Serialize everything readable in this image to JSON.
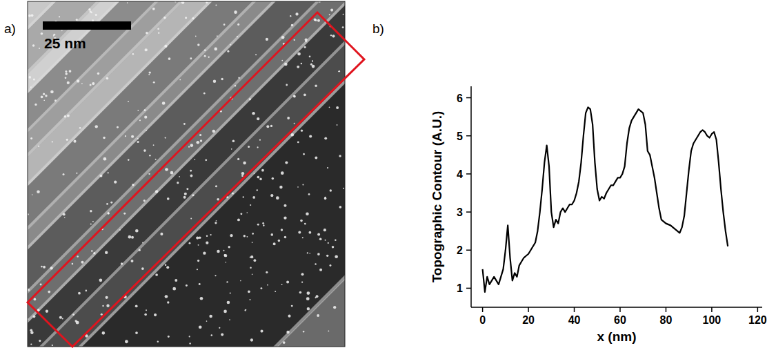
{
  "image_panel": {
    "label": "a)",
    "scale_bar": "25 nm"
  },
  "chart_data": {
    "type": "line",
    "panel_label": "b)",
    "x_label": "x (nm)",
    "y_label": "Topographic Contour (A.U.)",
    "color": "#000000",
    "x": [
      0,
      0.5,
      1,
      2,
      3,
      5,
      6,
      7,
      8,
      9,
      10,
      11,
      12,
      13,
      14,
      15,
      16,
      17,
      18,
      19,
      20,
      21,
      22,
      23,
      24,
      25,
      26,
      27,
      28,
      29,
      30,
      31,
      32,
      33,
      34,
      35,
      36,
      37,
      38,
      39,
      40,
      41,
      42,
      43,
      44,
      45,
      46,
      47,
      48,
      49,
      50,
      51,
      52,
      53,
      54,
      55,
      56,
      57,
      58,
      59,
      60,
      61,
      62,
      63,
      64,
      65,
      66,
      67,
      68,
      69,
      70,
      71,
      72,
      73,
      74,
      75,
      76,
      77,
      78,
      79,
      80,
      82,
      84,
      86,
      87,
      88,
      89,
      90,
      91,
      92,
      93,
      94,
      95,
      96,
      97,
      98,
      99,
      100,
      101,
      102,
      103,
      104,
      105,
      106,
      107
    ],
    "values": [
      1.5,
      1.2,
      0.9,
      1.3,
      1.1,
      1.3,
      1.2,
      1.1,
      1.3,
      1.5,
      2.0,
      2.65,
      1.8,
      1.2,
      1.4,
      1.3,
      1.6,
      1.7,
      1.8,
      1.85,
      1.9,
      2.0,
      2.1,
      2.2,
      2.5,
      3.0,
      3.6,
      4.3,
      4.75,
      4.2,
      3.0,
      2.6,
      2.8,
      2.7,
      3.0,
      3.1,
      3.0,
      3.1,
      3.2,
      3.2,
      3.3,
      3.5,
      3.8,
      4.3,
      5.0,
      5.6,
      5.75,
      5.7,
      5.3,
      4.3,
      3.6,
      3.3,
      3.4,
      3.35,
      3.5,
      3.6,
      3.7,
      3.7,
      3.8,
      3.9,
      3.9,
      4.0,
      4.2,
      4.8,
      5.2,
      5.4,
      5.5,
      5.6,
      5.7,
      5.65,
      5.6,
      5.3,
      4.6,
      4.5,
      4.2,
      3.9,
      3.5,
      3.1,
      2.8,
      2.75,
      2.7,
      2.65,
      2.55,
      2.45,
      2.6,
      2.9,
      3.5,
      4.1,
      4.6,
      4.8,
      4.9,
      5.0,
      5.1,
      5.15,
      5.1,
      5.0,
      4.95,
      5.05,
      5.1,
      4.9,
      4.3,
      3.6,
      3.0,
      2.5,
      2.1
    ],
    "xlim": [
      -5,
      122
    ],
    "xticks": [
      0,
      20,
      40,
      60,
      80,
      100,
      120
    ],
    "ylim": [
      0.5,
      6.3
    ],
    "yticks": [
      1,
      2,
      3,
      4,
      5,
      6
    ],
    "grid": false
  }
}
